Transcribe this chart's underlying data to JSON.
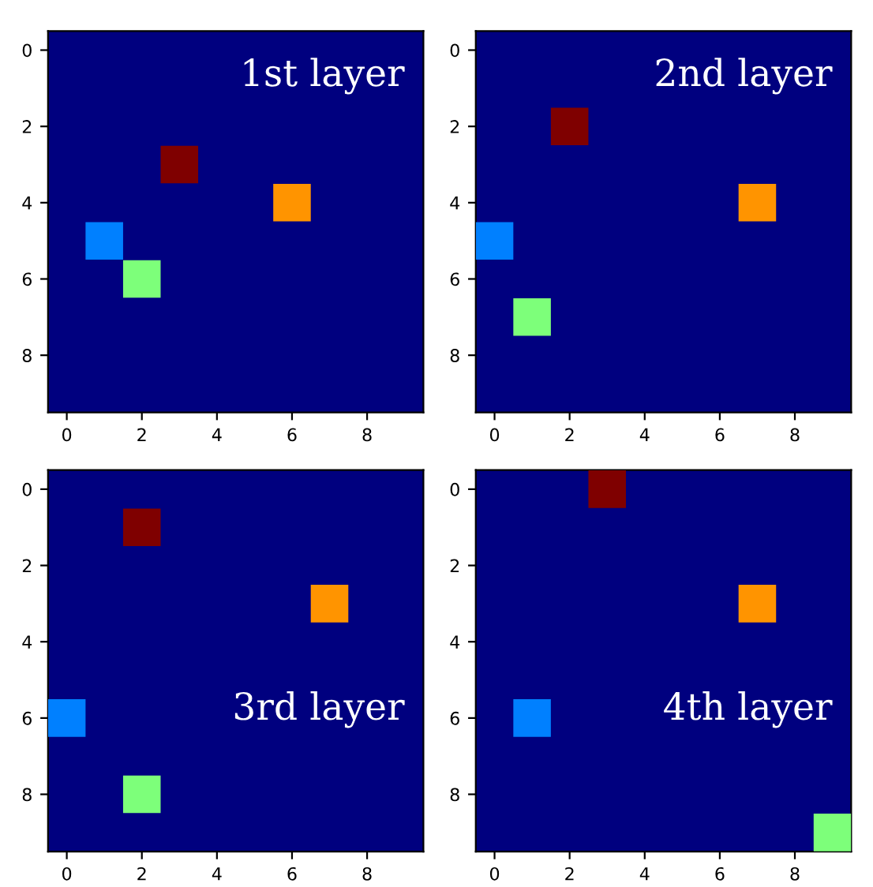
{
  "chart_data": [
    {
      "type": "scatter",
      "title": "1st layer",
      "marker": "square",
      "xlim": [
        -0.5,
        9.5
      ],
      "ylim": [
        9.5,
        -0.5
      ],
      "xticks": [
        0,
        2,
        4,
        6,
        8
      ],
      "yticks": [
        0,
        2,
        4,
        6,
        8
      ],
      "grid": false,
      "legend": false,
      "series": [
        {
          "color": "#7f0000",
          "x": [
            3
          ],
          "values": [
            3
          ]
        },
        {
          "color": "#ff9400",
          "x": [
            6
          ],
          "values": [
            4
          ]
        },
        {
          "color": "#0080ff",
          "x": [
            1
          ],
          "values": [
            5
          ]
        },
        {
          "color": "#7dff7a",
          "x": [
            2
          ],
          "values": [
            6
          ]
        }
      ]
    },
    {
      "type": "scatter",
      "title": "2nd layer",
      "marker": "square",
      "xlim": [
        -0.5,
        9.5
      ],
      "ylim": [
        9.5,
        -0.5
      ],
      "xticks": [
        0,
        2,
        4,
        6,
        8
      ],
      "yticks": [
        0,
        2,
        4,
        6,
        8
      ],
      "grid": false,
      "legend": false,
      "series": [
        {
          "color": "#7f0000",
          "x": [
            2
          ],
          "values": [
            2
          ]
        },
        {
          "color": "#ff9400",
          "x": [
            7
          ],
          "values": [
            4
          ]
        },
        {
          "color": "#0080ff",
          "x": [
            0
          ],
          "values": [
            5
          ]
        },
        {
          "color": "#7dff7a",
          "x": [
            1
          ],
          "values": [
            7
          ]
        }
      ]
    },
    {
      "type": "scatter",
      "title": "3rd layer",
      "marker": "square",
      "xlim": [
        -0.5,
        9.5
      ],
      "ylim": [
        9.5,
        -0.5
      ],
      "xticks": [
        0,
        2,
        4,
        6,
        8
      ],
      "yticks": [
        0,
        2,
        4,
        6,
        8
      ],
      "grid": false,
      "legend": false,
      "series": [
        {
          "color": "#7f0000",
          "x": [
            2
          ],
          "values": [
            1
          ]
        },
        {
          "color": "#ff9400",
          "x": [
            7
          ],
          "values": [
            3
          ]
        },
        {
          "color": "#0080ff",
          "x": [
            0
          ],
          "values": [
            6
          ]
        },
        {
          "color": "#7dff7a",
          "x": [
            2
          ],
          "values": [
            8
          ]
        }
      ]
    },
    {
      "type": "scatter",
      "title": "4th layer",
      "marker": "square",
      "xlim": [
        -0.5,
        9.5
      ],
      "ylim": [
        9.5,
        -0.5
      ],
      "xticks": [
        0,
        2,
        4,
        6,
        8
      ],
      "yticks": [
        0,
        2,
        4,
        6,
        8
      ],
      "grid": false,
      "legend": false,
      "series": [
        {
          "color": "#7f0000",
          "x": [
            3
          ],
          "values": [
            0
          ]
        },
        {
          "color": "#ff9400",
          "x": [
            7
          ],
          "values": [
            3
          ]
        },
        {
          "color": "#0080ff",
          "x": [
            1
          ],
          "values": [
            6
          ]
        },
        {
          "color": "#7dff7a",
          "x": [
            9
          ],
          "values": [
            9
          ]
        }
      ]
    }
  ]
}
